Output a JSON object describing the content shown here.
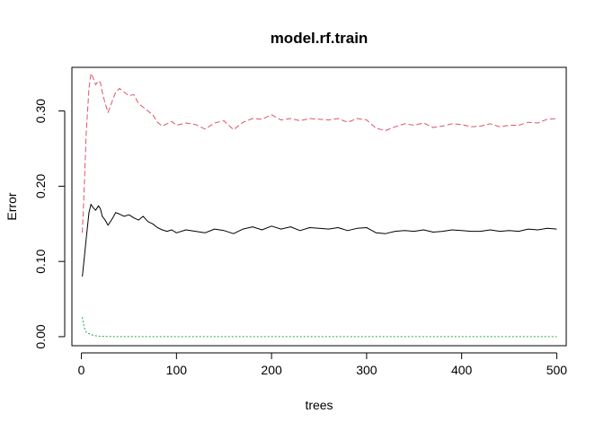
{
  "chart_data": {
    "type": "line",
    "title": "model.rf.train",
    "xlabel": "trees",
    "ylabel": "Error",
    "xlim": [
      -10,
      510
    ],
    "ylim": [
      -0.012,
      0.358
    ],
    "xticks": [
      0,
      100,
      200,
      300,
      400,
      500
    ],
    "xtick_labels": [
      "0",
      "100",
      "200",
      "300",
      "400",
      "500"
    ],
    "yticks": [
      0.0,
      0.1,
      0.2,
      0.3
    ],
    "ytick_labels": [
      "0.00",
      "0.10",
      "0.20",
      "0.30"
    ],
    "grid": false,
    "legend": "none",
    "series": [
      {
        "key": "oob",
        "color": "#000000",
        "dash": "solid",
        "x": [
          1,
          3,
          5,
          8,
          10,
          12,
          15,
          18,
          20,
          22,
          25,
          28,
          30,
          33,
          36,
          40,
          45,
          50,
          55,
          60,
          65,
          70,
          75,
          80,
          85,
          90,
          95,
          100,
          110,
          120,
          130,
          140,
          150,
          160,
          170,
          180,
          190,
          200,
          210,
          220,
          230,
          240,
          250,
          260,
          270,
          280,
          290,
          300,
          310,
          320,
          330,
          340,
          350,
          360,
          370,
          380,
          390,
          400,
          410,
          420,
          430,
          440,
          450,
          460,
          470,
          480,
          490,
          500
        ],
        "y": [
          0.08,
          0.105,
          0.13,
          0.165,
          0.176,
          0.172,
          0.168,
          0.174,
          0.17,
          0.16,
          0.155,
          0.148,
          0.152,
          0.158,
          0.165,
          0.163,
          0.16,
          0.162,
          0.158,
          0.155,
          0.16,
          0.153,
          0.15,
          0.145,
          0.142,
          0.14,
          0.142,
          0.138,
          0.142,
          0.14,
          0.138,
          0.143,
          0.141,
          0.137,
          0.143,
          0.146,
          0.142,
          0.147,
          0.143,
          0.146,
          0.141,
          0.145,
          0.144,
          0.143,
          0.145,
          0.141,
          0.144,
          0.145,
          0.138,
          0.137,
          0.14,
          0.141,
          0.14,
          0.142,
          0.139,
          0.14,
          0.142,
          0.141,
          0.14,
          0.14,
          0.142,
          0.14,
          0.141,
          0.14,
          0.143,
          0.142,
          0.144,
          0.143
        ]
      },
      {
        "key": "class-1",
        "color": "#df536b",
        "dash": "6,3",
        "x": [
          1,
          3,
          5,
          8,
          10,
          12,
          15,
          18,
          20,
          22,
          25,
          28,
          30,
          33,
          36,
          40,
          45,
          50,
          55,
          60,
          65,
          70,
          75,
          80,
          85,
          90,
          95,
          100,
          110,
          120,
          130,
          140,
          150,
          160,
          170,
          180,
          190,
          200,
          210,
          220,
          230,
          240,
          250,
          260,
          270,
          280,
          290,
          300,
          310,
          320,
          330,
          340,
          350,
          360,
          370,
          380,
          390,
          400,
          410,
          420,
          430,
          440,
          450,
          460,
          470,
          480,
          490,
          500
        ],
        "y": [
          0.138,
          0.2,
          0.27,
          0.33,
          0.35,
          0.345,
          0.335,
          0.34,
          0.338,
          0.325,
          0.31,
          0.298,
          0.305,
          0.315,
          0.325,
          0.33,
          0.325,
          0.32,
          0.322,
          0.31,
          0.305,
          0.3,
          0.295,
          0.285,
          0.28,
          0.283,
          0.286,
          0.281,
          0.284,
          0.282,
          0.276,
          0.284,
          0.287,
          0.275,
          0.285,
          0.29,
          0.289,
          0.295,
          0.288,
          0.29,
          0.287,
          0.29,
          0.289,
          0.288,
          0.29,
          0.285,
          0.29,
          0.288,
          0.277,
          0.274,
          0.279,
          0.283,
          0.281,
          0.284,
          0.278,
          0.28,
          0.283,
          0.282,
          0.279,
          0.28,
          0.283,
          0.279,
          0.281,
          0.281,
          0.285,
          0.284,
          0.289,
          0.29
        ]
      },
      {
        "key": "class-2",
        "color": "#28a745",
        "dash": "2,2",
        "x": [
          1,
          3,
          5,
          8,
          12,
          16,
          20,
          30,
          50,
          100,
          200,
          300,
          400,
          500
        ],
        "y": [
          0.026,
          0.012,
          0.006,
          0.004,
          0.002,
          0.001,
          0.0005,
          0.0002,
          0.0,
          0.0,
          0.0,
          0.0,
          0.0,
          0.0
        ]
      }
    ]
  }
}
